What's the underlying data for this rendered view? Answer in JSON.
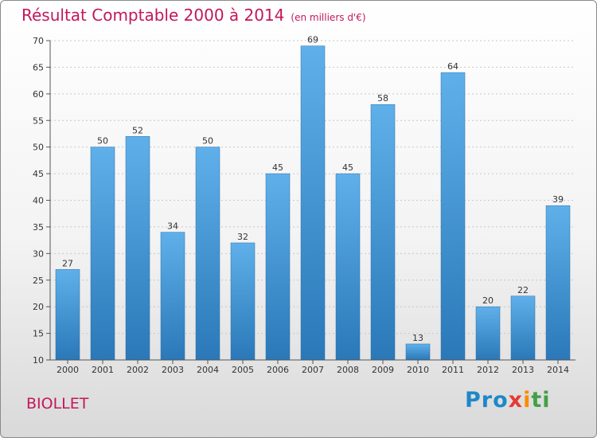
{
  "chart_data": {
    "type": "bar",
    "title": "Résultat Comptable 2000 à 2014",
    "subtitle": "(en milliers d'€)",
    "categories": [
      "2000",
      "2001",
      "2002",
      "2003",
      "2004",
      "2005",
      "2006",
      "2007",
      "2008",
      "2009",
      "2010",
      "2011",
      "2012",
      "2013",
      "2014"
    ],
    "values": [
      27,
      50,
      52,
      34,
      50,
      32,
      45,
      69,
      45,
      58,
      13,
      64,
      20,
      22,
      39
    ],
    "ylim": [
      10,
      70
    ],
    "yticks": [
      10,
      15,
      20,
      25,
      30,
      35,
      40,
      45,
      50,
      55,
      60,
      65,
      70
    ],
    "xlabel": "",
    "ylabel": "",
    "grid": true
  },
  "footer": {
    "commune": "BIOLLET",
    "logo_parts": [
      "Pro",
      "x",
      "i",
      "ti"
    ]
  },
  "colors": {
    "bar_top": "#5fb0ea",
    "bar_bottom": "#2a78b8",
    "title": "#c2185b"
  }
}
